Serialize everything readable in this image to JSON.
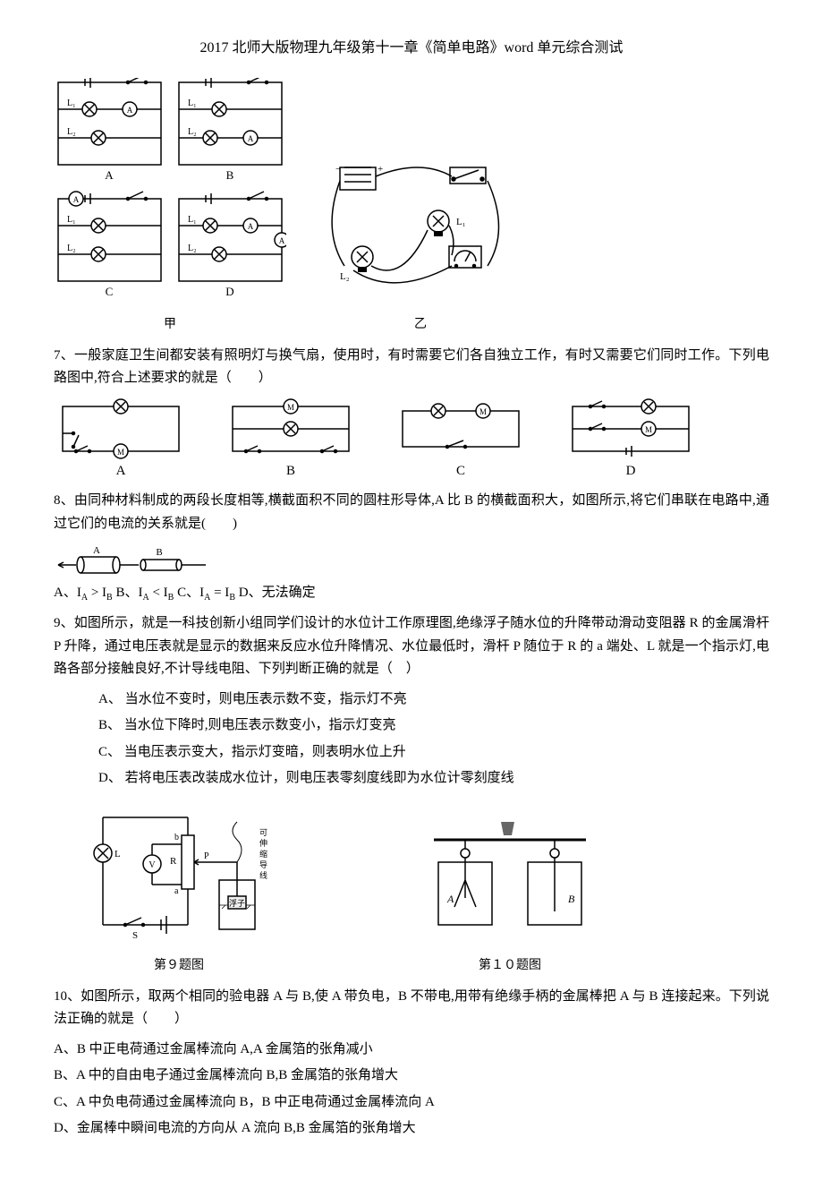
{
  "header": "2017 北师大版物理九年级第十一章《简单电路》word 单元综合测试",
  "fig6": {
    "labels": {
      "L1": "L₁",
      "L2": "L₂",
      "A": "A",
      "B": "B",
      "C": "C",
      "D": "D",
      "jia": "甲",
      "yi": "乙"
    },
    "stroke": "#000000",
    "circle_r": 7
  },
  "q7": {
    "text": "7、一般家庭卫生间都安装有照明灯与换气扇，使用时，有时需要它们各自独立工作，有时又需要它们同时工作。下列电路图中,符合上述要求的就是（　　）",
    "opts": {
      "A": "A",
      "B": "B",
      "C": "C",
      "D": "D"
    },
    "stroke": "#000000"
  },
  "q8": {
    "text": "8、由同种材料制成的两段长度相等,横截面积不同的圆柱形导体,A 比 B 的横截面积大，如图所示,将它们串联在电路中,通过它们的电流的关系就是(　　)",
    "labels": {
      "A": "A",
      "B": "B"
    },
    "choices": "A、I  > I        B、I  < I        C、I  = I     D、无法确定",
    "sub_layout": [
      {
        "t": "A、I",
        "s": "A"
      },
      {
        "t": " > I",
        "s": "B"
      },
      {
        "t": "        B、I",
        "s": "A"
      },
      {
        "t": " < I",
        "s": "B"
      },
      {
        "t": "        C、I",
        "s": "A"
      },
      {
        "t": " = I",
        "s": "B"
      },
      {
        "t": "     D、无法确定",
        "s": ""
      }
    ],
    "stroke": "#000000"
  },
  "q9": {
    "text": "9、如图所示，就是一科技创新小组同学们设计的水位计工作原理图,绝缘浮子随水位的升降带动滑动变阻器 R 的金属滑杆 P 升降，通过电压表就是显示的数据来反应水位升降情况、水位最低时，滑杆 P 随位于 R 的 a 端处、L 就是一个指示灯,电路各部分接触良好,不计导线电阻、下列判断正确的就是（　）",
    "opts": {
      "A": "A、 当水位不变时，则电压表示数不变，指示灯不亮",
      "B": "B、 当水位下降时,则电压表示数变小，指示灯变亮",
      "C": "C、 当电压表示变大，指示灯变暗，则表明水位上升",
      "D": "D、 若将电压表改装成水位计，则电压表零刻度线即为水位计零刻度线"
    },
    "caption_left": "第９题图",
    "caption_right": "第１０题图",
    "labels": {
      "L": "L",
      "V": "V",
      "R": "R",
      "P": "P",
      "a": "a",
      "b": "b",
      "S": "S",
      "fuzi": "浮子",
      "cable": "可\n伸\n缩\n导\n线"
    },
    "stroke": "#000000"
  },
  "q10": {
    "text": "10、如图所示，取两个相同的验电器 A 与 B,使 A 带负电，B 不带电,用带有绝缘手柄的金属棒把 A 与 B 连接起来。下列说法正确的就是（　　）",
    "opts": {
      "A": "A、B 中正电荷通过金属棒流向 A,A 金属箔的张角减小",
      "B": "B、A 中的自由电子通过金属棒流向 B,B 金属箔的张角增大",
      "C": "C、A 中负电荷通过金属棒流向 B，B 中正电荷通过金属棒流向 A",
      "D": "D、金属棒中瞬间电流的方向从 A 流向 B,B 金属箔的张角增大"
    },
    "labels": {
      "A": "A",
      "B": "B"
    },
    "stroke": "#000000"
  }
}
